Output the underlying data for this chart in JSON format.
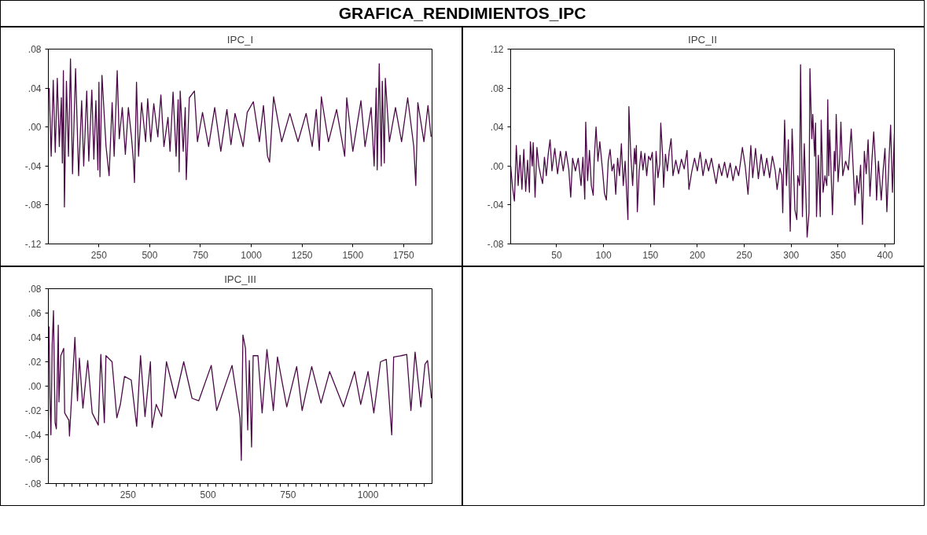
{
  "chart_data": [
    {
      "type": "line",
      "title": "GRAFICA_RENDIMIENTOS_IPC",
      "subtitle": "IPC_I",
      "grid": false,
      "xlim": [
        1,
        1890
      ],
      "ylim": [
        -0.12,
        0.08
      ],
      "xticks": [
        250,
        500,
        750,
        1000,
        1250,
        1500,
        1750
      ],
      "yticks": [
        {
          "value": -0.12,
          "label": "-.12"
        },
        {
          "value": -0.08,
          "label": "-.08"
        },
        {
          "value": -0.04,
          "label": "-.04"
        },
        {
          "value": 0,
          "label": ".00"
        },
        {
          "value": 0.04,
          "label": ".04"
        },
        {
          "value": 0.08,
          "label": ".08"
        }
      ],
      "x": [
        5,
        15,
        25,
        35,
        45,
        55,
        65,
        70,
        75,
        80,
        90,
        100,
        110,
        120,
        135,
        150,
        165,
        175,
        190,
        200,
        215,
        225,
        235,
        245,
        250,
        255,
        265,
        285,
        300,
        315,
        325,
        340,
        350,
        365,
        380,
        395,
        410,
        420,
        425,
        435,
        445,
        460,
        480,
        490,
        505,
        520,
        540,
        555,
        570,
        590,
        600,
        615,
        630,
        640,
        645,
        650,
        665,
        675,
        680,
        695,
        720,
        735,
        760,
        790,
        820,
        850,
        880,
        900,
        920,
        960,
        980,
        1010,
        1040,
        1060,
        1080,
        1090,
        1110,
        1150,
        1190,
        1230,
        1270,
        1300,
        1320,
        1335,
        1345,
        1380,
        1420,
        1460,
        1470,
        1500,
        1540,
        1560,
        1590,
        1605,
        1615,
        1620,
        1630,
        1640,
        1645,
        1655,
        1660,
        1680,
        1710,
        1740,
        1770,
        1800,
        1810,
        1820,
        1850,
        1870,
        1885
      ],
      "series": [
        {
          "color": "#4b0a47",
          "values": [
            0.04,
            -0.03,
            0.048,
            -0.026,
            0.05,
            -0.02,
            0.03,
            -0.037,
            0.058,
            -0.082,
            0.047,
            -0.03,
            0.07,
            -0.048,
            0.06,
            -0.05,
            0.027,
            -0.04,
            0.037,
            -0.035,
            0.038,
            -0.033,
            0.027,
            -0.044,
            0.046,
            -0.051,
            0.053,
            -0.02,
            -0.05,
            0.025,
            -0.03,
            0.058,
            -0.012,
            0.02,
            -0.028,
            0.02,
            -0.01,
            -0.035,
            -0.057,
            0.046,
            -0.03,
            0.025,
            -0.015,
            0.029,
            -0.015,
            0.024,
            -0.01,
            0.033,
            -0.02,
            0.01,
            -0.025,
            0.036,
            -0.03,
            0.028,
            -0.046,
            0.037,
            -0.025,
            0.02,
            -0.054,
            0.03,
            0.037,
            -0.015,
            0.015,
            -0.02,
            0.02,
            -0.025,
            0.018,
            -0.018,
            0.014,
            -0.02,
            0.015,
            0.026,
            -0.015,
            0.022,
            -0.03,
            -0.036,
            0.031,
            -0.015,
            0.014,
            -0.015,
            0.014,
            -0.02,
            0.018,
            -0.024,
            0.031,
            -0.015,
            0.018,
            -0.03,
            0.03,
            -0.025,
            0.027,
            -0.02,
            0.02,
            -0.04,
            0.04,
            -0.044,
            0.065,
            -0.04,
            0.047,
            -0.037,
            0.05,
            -0.015,
            0.02,
            -0.015,
            0.03,
            -0.02,
            -0.06,
            0.025,
            -0.015,
            0.022,
            -0.01
          ]
        }
      ]
    },
    {
      "type": "line",
      "title": "IPC_II",
      "grid": false,
      "xlim": [
        1,
        410
      ],
      "ylim": [
        -0.08,
        0.12
      ],
      "xticks": [
        50,
        100,
        150,
        200,
        250,
        300,
        350,
        400
      ],
      "yticks": [
        {
          "value": -0.08,
          "label": "-.08"
        },
        {
          "value": -0.04,
          "label": "-.04"
        },
        {
          "value": 0,
          "label": ".00"
        },
        {
          "value": 0.04,
          "label": ".04"
        },
        {
          "value": 0.08,
          "label": ".08"
        },
        {
          "value": 0.12,
          "label": ".12"
        }
      ],
      "x": [
        1,
        3,
        5,
        7,
        9,
        11,
        13,
        15,
        17,
        19,
        21,
        22,
        24,
        25,
        27,
        29,
        31,
        33,
        35,
        37,
        39,
        41,
        43,
        45,
        48,
        51,
        54,
        57,
        60,
        63,
        65,
        67,
        70,
        73,
        76,
        78,
        80,
        81,
        83,
        85,
        87,
        89,
        90,
        92,
        94,
        96,
        99,
        101,
        103,
        105,
        107,
        109,
        111,
        113,
        115,
        117,
        119,
        121,
        123,
        126,
        127,
        129,
        131,
        133,
        134,
        135,
        136,
        138,
        140,
        142,
        144,
        146,
        148,
        150,
        152,
        154,
        156,
        158,
        160,
        161,
        163,
        164,
        166,
        168,
        170,
        172,
        174,
        177,
        180,
        183,
        186,
        189,
        191,
        194,
        197,
        200,
        203,
        206,
        209,
        212,
        215,
        218,
        220,
        223,
        226,
        229,
        232,
        235,
        238,
        241,
        244,
        246,
        248,
        251,
        254,
        257,
        259,
        262,
        265,
        268,
        271,
        274,
        277,
        280,
        283,
        285,
        288,
        290,
        291,
        293,
        295,
        297,
        299,
        301,
        304,
        306,
        307,
        309,
        310,
        312,
        314,
        317,
        319,
        320,
        322,
        323,
        325,
        326,
        327,
        329,
        331,
        332,
        334,
        336,
        338,
        339,
        340,
        341,
        342,
        344,
        346,
        347,
        348,
        350,
        352,
        353,
        355,
        358,
        361,
        364,
        366,
        368,
        370,
        372,
        374,
        376,
        378,
        380,
        382,
        384,
        386,
        388,
        390,
        391,
        393,
        396,
        398,
        400,
        402,
        404,
        406,
        408,
        410
      ],
      "series": [
        {
          "color": "#4b0a47",
          "values": [
            0,
            -0.022,
            -0.036,
            0.021,
            -0.02,
            0.011,
            -0.024,
            0.017,
            -0.026,
            0.006,
            -0.027,
            0.025,
            0.0,
            0.024,
            -0.032,
            0.019,
            0.0,
            -0.01,
            -0.018,
            0.009,
            -0.01,
            0.012,
            0.027,
            -0.005,
            0.018,
            -0.008,
            0.015,
            -0.005,
            0.015,
            -0.004,
            -0.032,
            0.008,
            -0.005,
            0.008,
            -0.02,
            0.009,
            -0.034,
            0.045,
            -0.015,
            0.016,
            -0.02,
            -0.03,
            0.006,
            0.04,
            0.005,
            0.025,
            -0.005,
            -0.028,
            -0.035,
            0.005,
            0.017,
            -0.005,
            0.002,
            -0.029,
            0.008,
            -0.01,
            0.023,
            -0.02,
            0.005,
            -0.055,
            0.061,
            0.012,
            -0.02,
            0.018,
            0.002,
            0.021,
            -0.047,
            -0.005,
            0.015,
            -0.004,
            0.013,
            -0.01,
            0.01,
            0.006,
            0.014,
            -0.04,
            0.015,
            -0.012,
            0.002,
            0.044,
            0.01,
            -0.022,
            0.012,
            -0.005,
            0.015,
            0.028,
            -0.01,
            0.006,
            -0.008,
            0.007,
            -0.003,
            0.016,
            -0.024,
            -0.006,
            0.008,
            -0.005,
            0.014,
            -0.01,
            0.007,
            -0.005,
            0.008,
            -0.008,
            -0.018,
            0.002,
            -0.01,
            0.004,
            -0.012,
            0.003,
            -0.015,
            0.0,
            -0.01,
            0.004,
            0.019,
            0.0,
            -0.029,
            0.021,
            -0.012,
            0.018,
            -0.013,
            0.012,
            -0.01,
            0.008,
            -0.012,
            0.01,
            -0.005,
            -0.024,
            -0.002,
            -0.01,
            -0.048,
            0.047,
            -0.02,
            0.027,
            -0.067,
            0.038,
            -0.045,
            -0.055,
            -0.01,
            -0.02,
            0.104,
            -0.052,
            0.023,
            -0.073,
            -0.048,
            0.1,
            0.028,
            0.053,
            0.01,
            0.044,
            -0.052,
            0.011,
            -0.052,
            0.047,
            -0.027,
            -0.01,
            -0.02,
            0.068,
            -0.01,
            0.037,
            0.01,
            -0.05,
            0.015,
            -0.005,
            0.053,
            -0.016,
            0.012,
            0.045,
            -0.01,
            0.005,
            -0.004,
            0.038,
            0.0,
            -0.04,
            -0.01,
            -0.028,
            0.001,
            -0.06,
            0.015,
            -0.008,
            0.027,
            -0.031,
            0.005,
            0.035,
            0.0,
            -0.035,
            0.005,
            -0.035,
            -0.005,
            0.018,
            -0.047,
            0.0,
            0.042,
            -0.027,
            0.033
          ]
        }
      ]
    },
    {
      "type": "line",
      "title": "IPC_III",
      "grid": false,
      "xlim": [
        1,
        1200
      ],
      "ylim": [
        -0.08,
        0.08
      ],
      "xticks": [
        {
          "value": 25,
          "label": null
        },
        {
          "value": 50,
          "label": null
        },
        {
          "value": 75,
          "label": null
        },
        {
          "value": 100,
          "label": null
        },
        {
          "value": 125,
          "label": null
        },
        {
          "value": 150,
          "label": null
        },
        {
          "value": 175,
          "label": null
        },
        {
          "value": 200,
          "label": null
        },
        {
          "value": 225,
          "label": null
        },
        250,
        {
          "value": 275,
          "label": null
        },
        {
          "value": 300,
          "label": null
        },
        {
          "value": 325,
          "label": null
        },
        {
          "value": 350,
          "label": null
        },
        {
          "value": 375,
          "label": null
        },
        {
          "value": 400,
          "label": null
        },
        {
          "value": 425,
          "label": null
        },
        {
          "value": 450,
          "label": null
        },
        {
          "value": 475,
          "label": null
        },
        500,
        {
          "value": 525,
          "label": null
        },
        {
          "value": 550,
          "label": null
        },
        {
          "value": 575,
          "label": null
        },
        {
          "value": 600,
          "label": null
        },
        {
          "value": 625,
          "label": null
        },
        {
          "value": 650,
          "label": null
        },
        {
          "value": 675,
          "label": null
        },
        {
          "value": 700,
          "label": null
        },
        {
          "value": 725,
          "label": null
        },
        750,
        {
          "value": 775,
          "label": null
        },
        {
          "value": 800,
          "label": null
        },
        {
          "value": 825,
          "label": null
        },
        {
          "value": 850,
          "label": null
        },
        {
          "value": 875,
          "label": null
        },
        {
          "value": 900,
          "label": null
        },
        {
          "value": 925,
          "label": null
        },
        {
          "value": 950,
          "label": null
        },
        {
          "value": 975,
          "label": null
        },
        1000,
        {
          "value": 1025,
          "label": null
        },
        {
          "value": 1050,
          "label": null
        },
        {
          "value": 1075,
          "label": null
        },
        {
          "value": 1100,
          "label": null
        },
        {
          "value": 1125,
          "label": null
        },
        {
          "value": 1150,
          "label": null
        },
        {
          "value": 1175,
          "label": null
        }
      ],
      "yticks": [
        {
          "value": -0.08,
          "label": "-.08"
        },
        {
          "value": -0.06,
          "label": "-.06"
        },
        {
          "value": -0.04,
          "label": "-.04"
        },
        {
          "value": -0.02,
          "label": "-.02"
        },
        {
          "value": 0,
          "label": ".00"
        },
        {
          "value": 0.02,
          "label": ".02"
        },
        {
          "value": 0.04,
          "label": ".04"
        },
        {
          "value": 0.06,
          "label": ".06"
        },
        {
          "value": 0.08,
          "label": ".08"
        }
      ],
      "x": [
        3,
        6,
        9,
        13,
        17,
        22,
        26,
        32,
        34,
        40,
        49,
        52,
        65,
        67,
        84,
        92,
        98,
        109,
        124,
        138,
        157,
        165,
        176,
        181,
        200,
        215,
        226,
        239,
        260,
        277,
        289,
        303,
        320,
        325,
        338,
        355,
        370,
        398,
        424,
        450,
        471,
        510,
        527,
        575,
        600,
        604,
        609,
        617,
        624,
        629,
        636,
        641,
        656,
        669,
        684,
        704,
        717,
        746,
        777,
        794,
        824,
        853,
        880,
        923,
        958,
        977,
        1000,
        1018,
        1039,
        1057,
        1074,
        1080,
        1104,
        1121,
        1134,
        1147,
        1165,
        1178,
        1186,
        1198
      ],
      "series": [
        {
          "color": "#4b0a47",
          "values": [
            0.049,
            -0.01,
            -0.04,
            0.034,
            0.062,
            -0.03,
            -0.035,
            0.05,
            -0.013,
            0.025,
            0.031,
            -0.022,
            -0.028,
            -0.041,
            0.04,
            -0.012,
            0.023,
            -0.018,
            0.021,
            -0.022,
            -0.032,
            0.026,
            -0.03,
            0.025,
            0.02,
            -0.026,
            -0.015,
            0.008,
            0.005,
            -0.033,
            0.025,
            -0.025,
            0.02,
            -0.034,
            -0.015,
            -0.025,
            0.02,
            -0.01,
            0.02,
            -0.01,
            -0.012,
            0.017,
            -0.02,
            0.017,
            -0.026,
            -0.061,
            0.042,
            0.031,
            -0.036,
            0.021,
            -0.05,
            0.025,
            0.025,
            -0.022,
            0.03,
            -0.02,
            0.024,
            -0.017,
            0.016,
            -0.02,
            0.016,
            -0.014,
            0.012,
            -0.017,
            0.012,
            -0.015,
            0.012,
            -0.022,
            0.02,
            0.022,
            -0.04,
            0.024,
            0.025,
            0.026,
            -0.02,
            0.028,
            -0.017,
            0.018,
            0.021,
            -0.01
          ]
        }
      ]
    }
  ]
}
